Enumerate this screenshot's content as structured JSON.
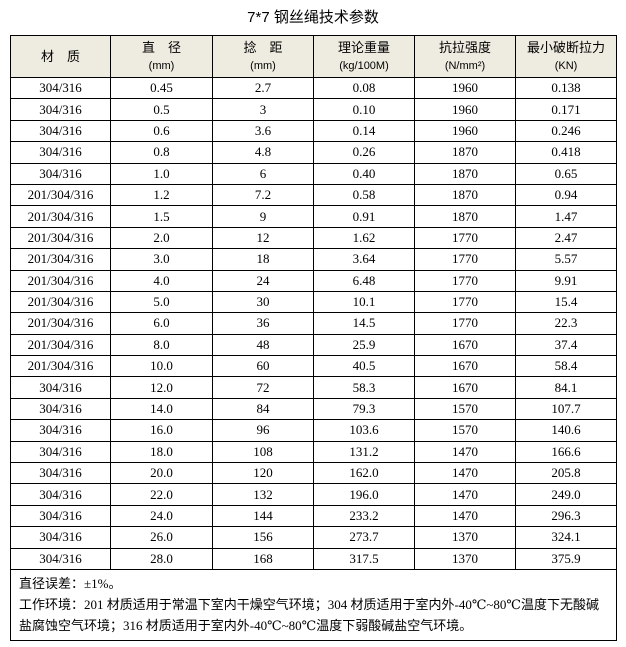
{
  "title": "7*7 钢丝绳技术参数",
  "headers": [
    {
      "label": "材　质",
      "unit": ""
    },
    {
      "label": "直　径",
      "unit": "(mm)"
    },
    {
      "label": "捻　距",
      "unit": "(mm)"
    },
    {
      "label": "理论重量",
      "unit": "(kg/100M)"
    },
    {
      "label": "抗拉强度",
      "unit": "(N/mm²)"
    },
    {
      "label": "最小破断拉力",
      "unit": "(KN)"
    }
  ],
  "rows": [
    [
      "304/316",
      "0.45",
      "2.7",
      "0.08",
      "1960",
      "0.138"
    ],
    [
      "304/316",
      "0.5",
      "3",
      "0.10",
      "1960",
      "0.171"
    ],
    [
      "304/316",
      "0.6",
      "3.6",
      "0.14",
      "1960",
      "0.246"
    ],
    [
      "304/316",
      "0.8",
      "4.8",
      "0.26",
      "1870",
      "0.418"
    ],
    [
      "304/316",
      "1.0",
      "6",
      "0.40",
      "1870",
      "0.65"
    ],
    [
      "201/304/316",
      "1.2",
      "7.2",
      "0.58",
      "1870",
      "0.94"
    ],
    [
      "201/304/316",
      "1.5",
      "9",
      "0.91",
      "1870",
      "1.47"
    ],
    [
      "201/304/316",
      "2.0",
      "12",
      "1.62",
      "1770",
      "2.47"
    ],
    [
      "201/304/316",
      "3.0",
      "18",
      "3.64",
      "1770",
      "5.57"
    ],
    [
      "201/304/316",
      "4.0",
      "24",
      "6.48",
      "1770",
      "9.91"
    ],
    [
      "201/304/316",
      "5.0",
      "30",
      "10.1",
      "1770",
      "15.4"
    ],
    [
      "201/304/316",
      "6.0",
      "36",
      "14.5",
      "1770",
      "22.3"
    ],
    [
      "201/304/316",
      "8.0",
      "48",
      "25.9",
      "1670",
      "37.4"
    ],
    [
      "201/304/316",
      "10.0",
      "60",
      "40.5",
      "1670",
      "58.4"
    ],
    [
      "304/316",
      "12.0",
      "72",
      "58.3",
      "1670",
      "84.1"
    ],
    [
      "304/316",
      "14.0",
      "84",
      "79.3",
      "1570",
      "107.7"
    ],
    [
      "304/316",
      "16.0",
      "96",
      "103.6",
      "1570",
      "140.6"
    ],
    [
      "304/316",
      "18.0",
      "108",
      "131.2",
      "1470",
      "166.6"
    ],
    [
      "304/316",
      "20.0",
      "120",
      "162.0",
      "1470",
      "205.8"
    ],
    [
      "304/316",
      "22.0",
      "132",
      "196.0",
      "1470",
      "249.0"
    ],
    [
      "304/316",
      "24.0",
      "144",
      "233.2",
      "1470",
      "296.3"
    ],
    [
      "304/316",
      "26.0",
      "156",
      "273.7",
      "1370",
      "324.1"
    ],
    [
      "304/316",
      "28.0",
      "168",
      "317.5",
      "1370",
      "375.9"
    ]
  ],
  "notes": [
    "直径误差：±1%。",
    "工作环境：201 材质适用于常温下室内干燥空气环境；304 材质适用于室内外-40℃~80℃温度下无酸碱盐腐蚀空气环境；316 材质适用于室内外-40℃~80℃温度下弱酸碱盐空气环境。"
  ],
  "colors": {
    "header_bg": "#eeece1"
  }
}
